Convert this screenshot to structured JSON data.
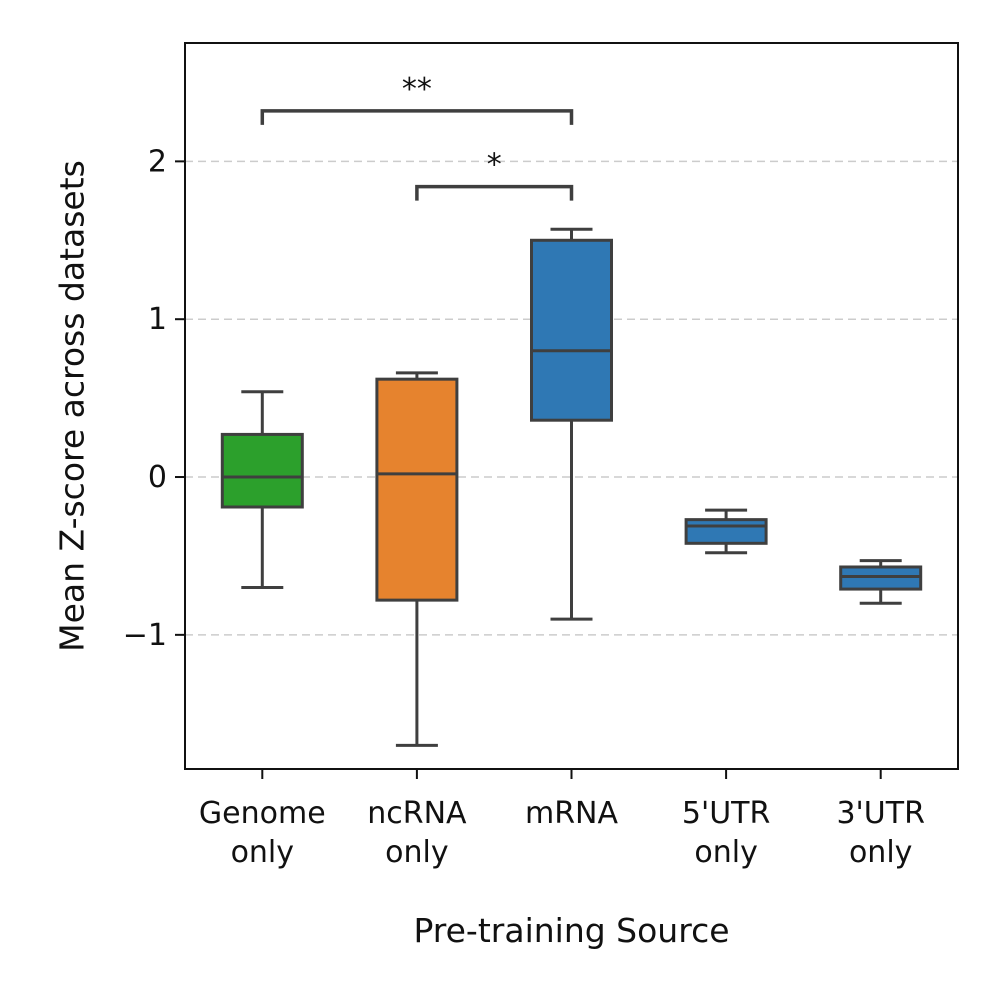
{
  "chart_data": {
    "type": "box",
    "xlabel": "Pre-training Source",
    "ylabel": "Mean Z-score across datasets",
    "ylim": [
      -1.85,
      2.75
    ],
    "yticks": [
      -1,
      0,
      1,
      2
    ],
    "ytick_labels": [
      "−1",
      "0",
      "1",
      "2"
    ],
    "grid": "y dashed",
    "categories": [
      [
        "Genome",
        "only"
      ],
      [
        "ncRNA",
        "only"
      ],
      [
        "mRNA"
      ],
      [
        "5'UTR",
        "only"
      ],
      [
        "3'UTR",
        "only"
      ]
    ],
    "boxes": [
      {
        "color": "#2ca02c",
        "whislo": -0.7,
        "q1": -0.19,
        "med": 0.0,
        "q3": 0.27,
        "whishi": 0.54
      },
      {
        "color": "#e6832e",
        "whislo": -1.7,
        "q1": -0.78,
        "med": 0.02,
        "q3": 0.62,
        "whishi": 0.66
      },
      {
        "color": "#2f78b4",
        "whislo": -0.9,
        "q1": 0.36,
        "med": 0.8,
        "q3": 1.5,
        "whishi": 1.57
      },
      {
        "color": "#2f78b4",
        "whislo": -0.48,
        "q1": -0.42,
        "med": -0.31,
        "q3": -0.27,
        "whishi": -0.21
      },
      {
        "color": "#2f78b4",
        "whislo": -0.8,
        "q1": -0.71,
        "med": -0.63,
        "q3": -0.57,
        "whishi": -0.53
      }
    ],
    "significance": [
      {
        "from": 0,
        "to": 2,
        "y": 2.32,
        "label": "**"
      },
      {
        "from": 1,
        "to": 2,
        "y": 1.84,
        "label": "*"
      }
    ]
  }
}
